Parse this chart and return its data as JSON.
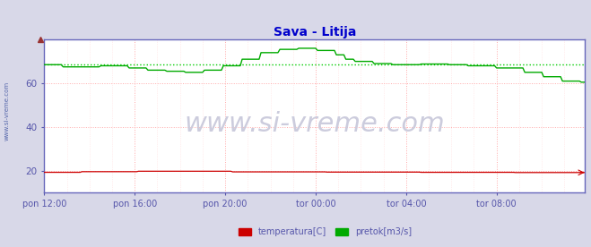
{
  "title": "Sava - Litija",
  "title_color": "#0000cc",
  "title_fontsize": 10,
  "bg_color": "#d8d8e8",
  "plot_bg_color": "#ffffff",
  "watermark": "www.si-vreme.com",
  "watermark_color": "#ccccdd",
  "watermark_fontsize": 22,
  "ylim": [
    10,
    80
  ],
  "yticks": [
    20,
    40,
    60
  ],
  "xtick_labels": [
    "pon 12:00",
    "pon 16:00",
    "pon 20:00",
    "tor 00:00",
    "tor 04:00",
    "tor 08:00"
  ],
  "xtick_positions": [
    0,
    48,
    96,
    144,
    192,
    240
  ],
  "grid_color": "#ffaaaa",
  "grid_color_minor": "#ffdddd",
  "axis_color": "#6666bb",
  "tick_color": "#5555aa",
  "temp_color": "#cc0000",
  "flow_color": "#00aa00",
  "flow_avg_color": "#00cc00",
  "legend_temp_label": "temperatura[C]",
  "legend_flow_label": "pretok[m3/s]",
  "sidebar_text": "www.si-vreme.com",
  "sidebar_color": "#5566aa"
}
